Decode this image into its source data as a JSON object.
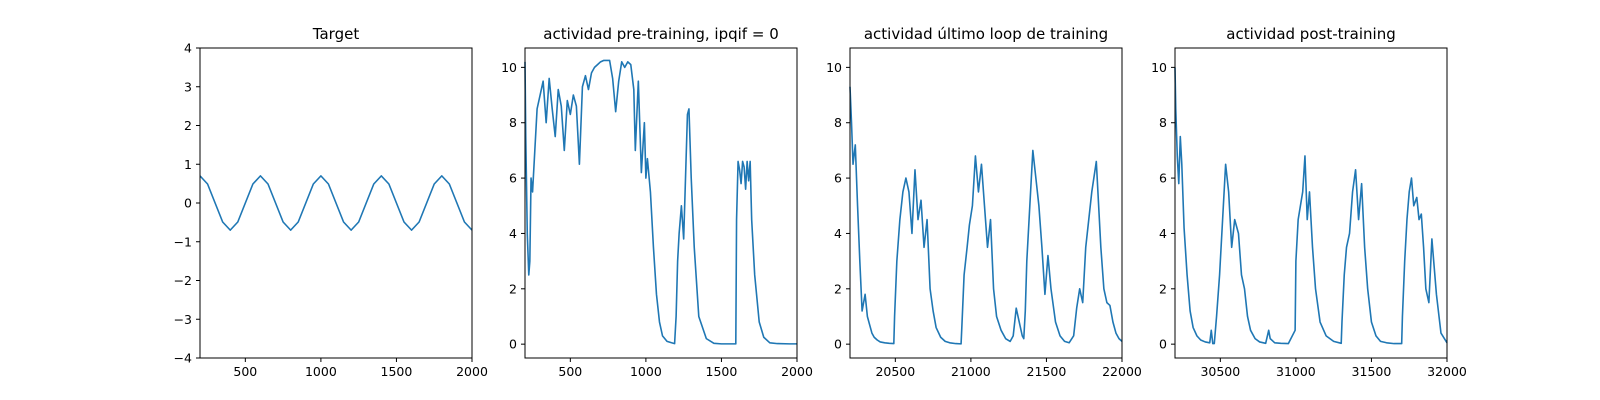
{
  "chart_data": [
    {
      "type": "line",
      "title": "Target",
      "xlabel": "",
      "ylabel": "",
      "xlim": [
        200,
        2000
      ],
      "ylim": [
        -4,
        4
      ],
      "xticks": [
        500,
        1000,
        1500,
        2000
      ],
      "yticks": [
        -4,
        -3,
        -2,
        -1,
        0,
        1,
        2,
        3,
        4
      ],
      "grid": false,
      "series": [
        {
          "color": "#1f77b4",
          "x": [
            200,
            250,
            300,
            350,
            400,
            450,
            500,
            550,
            600,
            650,
            700,
            750,
            800,
            850,
            900,
            950,
            1000,
            1050,
            1100,
            1150,
            1200,
            1250,
            1300,
            1350,
            1400,
            1450,
            1500,
            1550,
            1600,
            1650,
            1700,
            1750,
            1800,
            1850,
            1900,
            1950,
            2000
          ],
          "y": [
            0.7,
            0.49,
            0.0,
            -0.49,
            -0.7,
            -0.49,
            0.0,
            0.49,
            0.7,
            0.49,
            0.0,
            -0.49,
            -0.7,
            -0.49,
            0.0,
            0.49,
            0.7,
            0.49,
            0.0,
            -0.49,
            -0.7,
            -0.49,
            0.0,
            0.49,
            0.7,
            0.49,
            0.0,
            -0.49,
            -0.7,
            -0.49,
            0.0,
            0.49,
            0.7,
            0.49,
            0.0,
            -0.49,
            -0.7
          ]
        }
      ]
    },
    {
      "type": "line",
      "title": "actividad pre-training, ipqif = 0",
      "xlabel": "",
      "ylabel": "",
      "xlim": [
        200,
        2000
      ],
      "ylim": [
        -0.5,
        10.7
      ],
      "xticks": [
        500,
        1000,
        1500,
        2000
      ],
      "yticks": [
        0,
        2,
        4,
        6,
        8,
        10
      ],
      "grid": false,
      "series": [
        {
          "color": "#1f77b4",
          "x": [
            200,
            205,
            215,
            225,
            232,
            240,
            250,
            265,
            280,
            300,
            320,
            340,
            360,
            380,
            400,
            420,
            440,
            460,
            480,
            500,
            520,
            540,
            560,
            580,
            600,
            620,
            640,
            660,
            680,
            700,
            720,
            740,
            760,
            780,
            800,
            820,
            840,
            860,
            880,
            900,
            920,
            930,
            950,
            970,
            990,
            1000,
            1010,
            1030,
            1050,
            1070,
            1090,
            1110,
            1140,
            1170,
            1190,
            1200,
            1210,
            1220,
            1235,
            1250,
            1265,
            1275,
            1285,
            1300,
            1320,
            1350,
            1400,
            1450,
            1500,
            1550,
            1595,
            1600,
            1610,
            1620,
            1630,
            1640,
            1650,
            1660,
            1670,
            1680,
            1690,
            1700,
            1720,
            1750,
            1780,
            1820,
            1870,
            1950,
            2000
          ],
          "y": [
            10.2,
            7.5,
            4.0,
            2.5,
            3.0,
            6.0,
            5.5,
            7.0,
            8.5,
            9.0,
            9.5,
            8.0,
            9.6,
            8.5,
            7.5,
            9.2,
            8.6,
            7.0,
            8.8,
            8.3,
            9.0,
            8.6,
            6.5,
            9.3,
            9.7,
            9.2,
            9.8,
            10.0,
            10.1,
            10.2,
            10.25,
            10.25,
            10.25,
            9.6,
            8.4,
            9.5,
            10.2,
            10.0,
            10.2,
            10.1,
            9.2,
            7.0,
            9.5,
            6.2,
            8.0,
            6.0,
            6.7,
            5.5,
            3.5,
            1.8,
            0.8,
            0.3,
            0.1,
            0.05,
            0.02,
            1.0,
            3.0,
            4.0,
            5.0,
            3.8,
            6.5,
            8.3,
            8.5,
            6.0,
            3.5,
            1.0,
            0.2,
            0.03,
            0.01,
            0.01,
            0.01,
            4.5,
            6.6,
            6.3,
            5.8,
            6.6,
            6.4,
            5.6,
            6.6,
            5.9,
            6.6,
            4.5,
            2.5,
            0.8,
            0.25,
            0.05,
            0.02,
            0.01,
            0.01
          ]
        }
      ]
    },
    {
      "type": "line",
      "title": "actividad último loop de training",
      "xlabel": "",
      "ylabel": "",
      "xlim": [
        20200,
        22000
      ],
      "ylim": [
        -0.5,
        10.7
      ],
      "xticks": [
        20500,
        21000,
        21500,
        22000
      ],
      "yticks": [
        0,
        2,
        4,
        6,
        8,
        10
      ],
      "grid": false,
      "series": [
        {
          "color": "#1f77b4",
          "x": [
            20200,
            20210,
            20220,
            20235,
            20250,
            20265,
            20280,
            20300,
            20315,
            20330,
            20345,
            20360,
            20380,
            20400,
            20430,
            20460,
            20490,
            20495,
            20510,
            20530,
            20550,
            20570,
            20590,
            20610,
            20630,
            20650,
            20670,
            20690,
            20710,
            20730,
            20750,
            20770,
            20800,
            20830,
            20860,
            20900,
            20935,
            20940,
            20955,
            20975,
            20990,
            21010,
            21030,
            21050,
            21070,
            21090,
            21110,
            21130,
            21150,
            21170,
            21200,
            21230,
            21260,
            21280,
            21300,
            21320,
            21340,
            21350,
            21360,
            21370,
            21390,
            21410,
            21430,
            21450,
            21470,
            21490,
            21510,
            21530,
            21560,
            21590,
            21620,
            21650,
            21680,
            21700,
            21720,
            21740,
            21760,
            21780,
            21800,
            21830,
            21860,
            21880,
            21900,
            21920,
            21940,
            21960,
            21980,
            22000
          ],
          "y": [
            9.3,
            8.0,
            6.5,
            7.2,
            5.0,
            3.0,
            1.2,
            1.8,
            1.0,
            0.7,
            0.4,
            0.25,
            0.15,
            0.08,
            0.05,
            0.03,
            0.02,
            1.0,
            3.0,
            4.5,
            5.5,
            6.0,
            5.5,
            4.0,
            6.3,
            4.5,
            5.2,
            3.5,
            4.5,
            2.0,
            1.2,
            0.6,
            0.25,
            0.1,
            0.05,
            0.02,
            0.01,
            0.6,
            2.5,
            3.5,
            4.3,
            5.0,
            6.8,
            5.5,
            6.5,
            5.0,
            3.5,
            4.5,
            2.0,
            1.0,
            0.5,
            0.2,
            0.1,
            0.3,
            1.3,
            0.8,
            0.3,
            0.2,
            1.2,
            3.0,
            5.0,
            7.0,
            6.0,
            5.0,
            3.5,
            1.8,
            3.2,
            2.0,
            0.8,
            0.3,
            0.1,
            0.05,
            0.3,
            1.3,
            2.0,
            1.5,
            3.5,
            4.5,
            5.5,
            6.6,
            3.5,
            2.0,
            1.5,
            1.4,
            0.8,
            0.4,
            0.2,
            0.1
          ]
        }
      ]
    },
    {
      "type": "line",
      "title": "actividad post-training",
      "xlabel": "",
      "ylabel": "",
      "xlim": [
        30200,
        32000
      ],
      "ylim": [
        -0.5,
        10.7
      ],
      "xticks": [
        30500,
        31000,
        31500,
        32000
      ],
      "yticks": [
        0,
        2,
        4,
        6,
        8,
        10
      ],
      "grid": false,
      "series": [
        {
          "color": "#1f77b4",
          "x": [
            30200,
            30205,
            30215,
            30225,
            30235,
            30245,
            30260,
            30280,
            30300,
            30320,
            30345,
            30370,
            30400,
            30430,
            30440,
            30450,
            30460,
            30475,
            30495,
            30500,
            30515,
            30535,
            30555,
            30575,
            30595,
            30620,
            30640,
            30660,
            30680,
            30700,
            30730,
            30760,
            30800,
            30820,
            30830,
            30860,
            30900,
            30950,
            30995,
            31000,
            31015,
            31030,
            31045,
            31060,
            31075,
            31090,
            31110,
            31130,
            31160,
            31200,
            31250,
            31300,
            31305,
            31320,
            31335,
            31355,
            31375,
            31395,
            31415,
            31435,
            31455,
            31475,
            31500,
            31530,
            31560,
            31600,
            31650,
            31700,
            31705,
            31720,
            31735,
            31750,
            31765,
            31780,
            31800,
            31815,
            31830,
            31845,
            31860,
            31880,
            31900,
            31930,
            31960,
            32000
          ],
          "y": [
            10.0,
            8.5,
            6.8,
            5.8,
            7.5,
            6.5,
            4.2,
            2.5,
            1.2,
            0.6,
            0.3,
            0.15,
            0.08,
            0.05,
            0.5,
            0.02,
            0.02,
            1.0,
            2.5,
            3.0,
            4.5,
            6.5,
            5.5,
            3.5,
            4.5,
            4.0,
            2.5,
            2.0,
            1.0,
            0.5,
            0.2,
            0.08,
            0.03,
            0.5,
            0.2,
            0.05,
            0.03,
            0.02,
            0.5,
            3.0,
            4.5,
            5.0,
            5.5,
            6.8,
            4.5,
            5.5,
            3.5,
            2.0,
            0.8,
            0.3,
            0.1,
            0.03,
            0.8,
            2.5,
            3.5,
            4.0,
            5.5,
            6.3,
            4.5,
            5.8,
            3.5,
            2.0,
            0.8,
            0.3,
            0.1,
            0.05,
            0.02,
            0.02,
            1.0,
            3.0,
            4.5,
            5.5,
            6.0,
            5.0,
            5.3,
            4.5,
            4.7,
            3.5,
            2.0,
            1.5,
            3.8,
            1.8,
            0.4,
            0.05
          ]
        }
      ]
    }
  ]
}
